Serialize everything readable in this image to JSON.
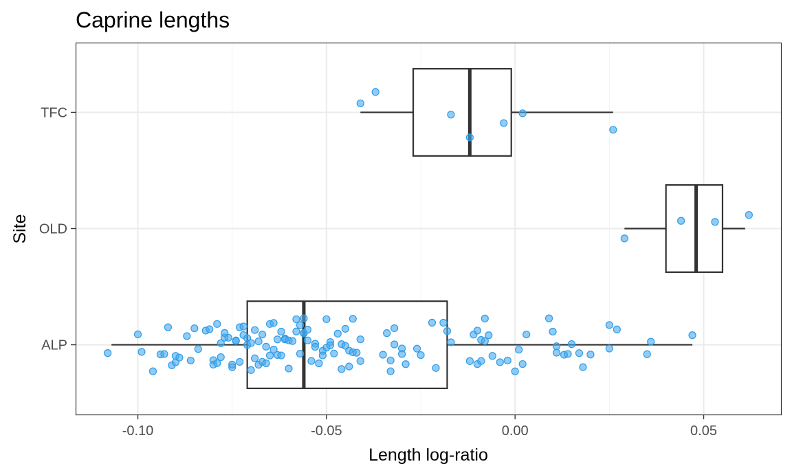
{
  "chart_data": {
    "type": "boxplot",
    "title": "Caprine lengths",
    "xlabel": "Length log-ratio",
    "ylabel": "Site",
    "xlim": [
      -0.1165,
      0.0705
    ],
    "x_ticks": [
      -0.1,
      -0.05,
      0.0,
      0.05
    ],
    "x_tick_labels": [
      "-0.10",
      "-0.05",
      "0.00",
      "0.05"
    ],
    "categories": [
      "ALP",
      "OLD",
      "TFC"
    ],
    "grid": true,
    "legend": "none",
    "point_color": "#4aa8ee",
    "box_color": "#333333",
    "boxes": [
      {
        "category": "ALP",
        "whisker_low": -0.107,
        "q1": -0.071,
        "median": -0.056,
        "q3": -0.018,
        "whisker_high": 0.047
      },
      {
        "category": "OLD",
        "whisker_low": 0.029,
        "q1": 0.04,
        "median": 0.048,
        "q3": 0.055,
        "whisker_high": 0.061
      },
      {
        "category": "TFC",
        "whisker_low": -0.041,
        "q1": -0.027,
        "median": -0.012,
        "q3": -0.001,
        "whisker_high": 0.026
      }
    ],
    "points": {
      "ALP": [
        -0.108,
        -0.1,
        -0.099,
        -0.096,
        -0.094,
        -0.093,
        -0.092,
        -0.091,
        -0.09,
        -0.09,
        -0.089,
        -0.087,
        -0.086,
        -0.085,
        -0.084,
        -0.082,
        -0.081,
        -0.08,
        -0.08,
        -0.079,
        -0.079,
        -0.078,
        -0.078,
        -0.077,
        -0.077,
        -0.076,
        -0.075,
        -0.075,
        -0.074,
        -0.074,
        -0.073,
        -0.073,
        -0.072,
        -0.072,
        -0.071,
        -0.071,
        -0.07,
        -0.07,
        -0.069,
        -0.069,
        -0.068,
        -0.068,
        -0.067,
        -0.067,
        -0.066,
        -0.066,
        -0.065,
        -0.065,
        -0.064,
        -0.064,
        -0.063,
        -0.063,
        -0.062,
        -0.062,
        -0.061,
        -0.061,
        -0.06,
        -0.06,
        -0.059,
        -0.058,
        -0.058,
        -0.057,
        -0.057,
        -0.056,
        -0.056,
        -0.056,
        -0.055,
        -0.055,
        -0.054,
        -0.053,
        -0.053,
        -0.052,
        -0.051,
        -0.051,
        -0.05,
        -0.05,
        -0.049,
        -0.049,
        -0.048,
        -0.047,
        -0.046,
        -0.046,
        -0.045,
        -0.045,
        -0.044,
        -0.044,
        -0.043,
        -0.043,
        -0.042,
        -0.041,
        -0.041,
        -0.035,
        -0.034,
        -0.033,
        -0.033,
        -0.032,
        -0.032,
        -0.03,
        -0.03,
        -0.029,
        -0.026,
        -0.025,
        -0.022,
        -0.021,
        -0.019,
        -0.018,
        -0.017,
        -0.012,
        -0.011,
        -0.01,
        -0.01,
        -0.009,
        -0.009,
        -0.008,
        -0.008,
        -0.007,
        -0.006,
        -0.004,
        -0.002,
        0.0,
        0.001,
        0.002,
        0.003,
        0.009,
        0.01,
        0.011,
        0.011,
        0.013,
        0.014,
        0.015,
        0.017,
        0.018,
        0.02,
        0.025,
        0.025,
        0.027,
        0.035,
        0.036,
        0.047
      ],
      "OLD": [
        0.029,
        0.044,
        0.053,
        0.062
      ],
      "TFC": [
        -0.041,
        -0.037,
        -0.017,
        -0.012,
        -0.003,
        0.002,
        0.026
      ]
    }
  }
}
